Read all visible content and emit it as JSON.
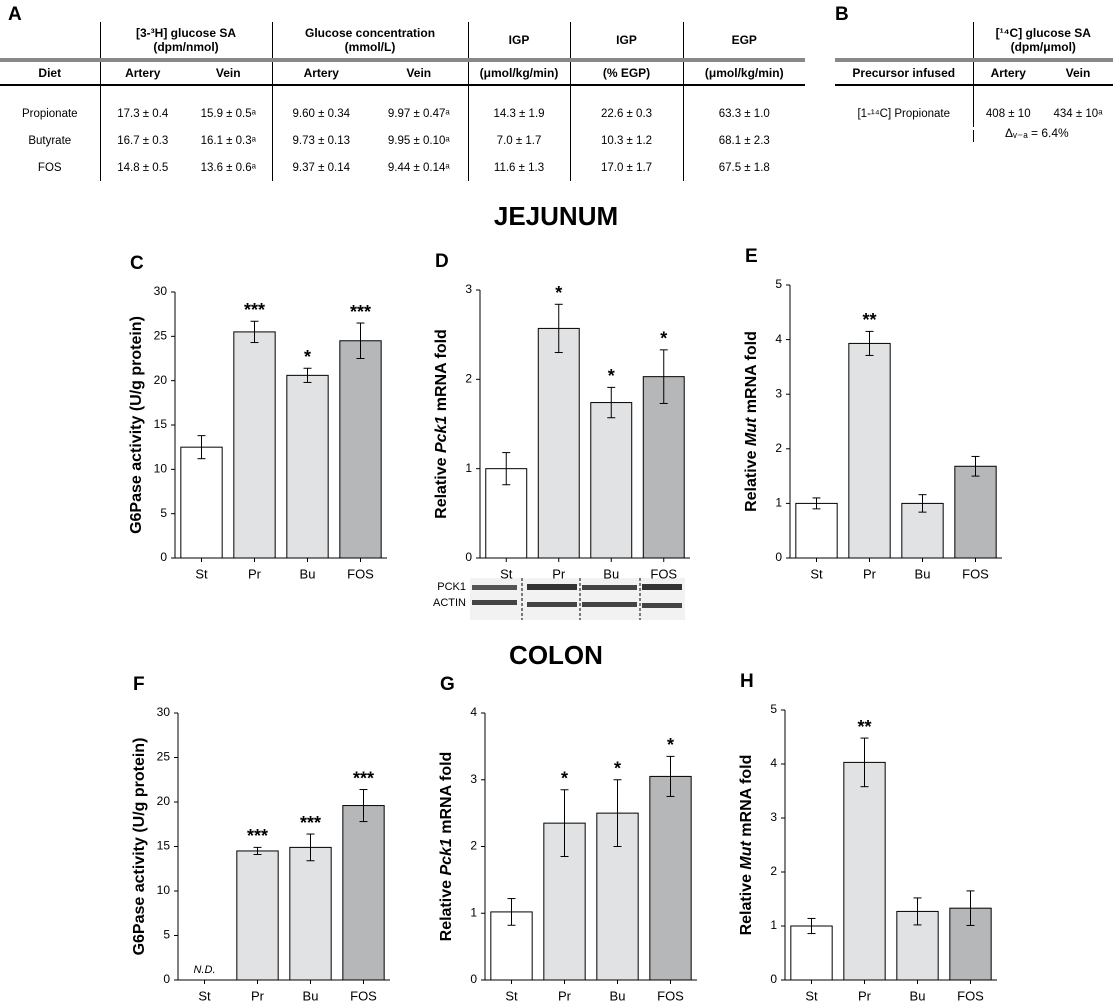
{
  "table_a": {
    "label": "A",
    "group_headers": [
      [
        "[3-³H] glucose SA",
        "(dpm/nmol)"
      ],
      [
        "Glucose concentration",
        "(mmol/L)"
      ],
      [
        "IGP"
      ],
      [
        "IGP"
      ],
      [
        "EGP"
      ]
    ],
    "columns": [
      "Diet",
      "Artery",
      "Vein",
      "Artery",
      "Vein",
      "(μmol/kg/min)",
      "(% EGP)",
      "(μmol/kg/min)"
    ],
    "rows": [
      [
        "Propionate",
        "17.3 ± 0.4",
        "15.9 ± 0.5ᵃ",
        "9.60 ± 0.34",
        "9.97 ± 0.47ᵃ",
        "14.3 ± 1.9",
        "22.6 ± 0.3",
        "63.3 ± 1.0"
      ],
      [
        "Butyrate",
        "16.7 ± 0.3",
        "16.1 ± 0.3ᵃ",
        "9.73 ± 0.13",
        "9.95 ± 0.10ᵃ",
        "7.0 ± 1.7",
        "10.3 ± 1.2",
        "68.1 ± 2.3"
      ],
      [
        "FOS",
        "14.8 ± 0.5",
        "13.6 ± 0.6ᵃ",
        "9.37 ± 0.14",
        "9.44 ± 0.14ᵃ",
        "11.6 ± 1.3",
        "17.0 ± 1.7",
        "67.5 ± 1.8"
      ]
    ]
  },
  "table_b": {
    "label": "B",
    "group_header": [
      "[¹⁴C] glucose SA",
      "(dpm/μmol)"
    ],
    "columns": [
      "Precursor infused",
      "Artery",
      "Vein"
    ],
    "rows": [
      [
        "[1-¹⁴C] Propionate",
        "408 ± 10",
        "434 ± 10ᵃ"
      ]
    ],
    "note": "Δᵥ₋ₐ = 6.4%"
  },
  "section_titles": [
    "JEJUNUM",
    "COLON"
  ],
  "blot_labels": [
    "PCK1",
    "ACTIN"
  ],
  "chart_data": [
    {
      "type": "bar",
      "label": "C",
      "ylabel": [
        "G6Pase activity (U/g protein)"
      ],
      "categories": [
        "St",
        "Pr",
        "Bu",
        "FOS"
      ],
      "values": [
        12.5,
        25.5,
        20.6,
        24.5
      ],
      "errors": [
        1.3,
        1.2,
        0.8,
        2.0
      ],
      "significance": [
        null,
        "***",
        "*",
        "***"
      ],
      "colors": [
        "#ffffff",
        "#e1e2e4",
        "#e1e2e4",
        "#b5b7b9"
      ],
      "ylim": [
        0,
        30
      ],
      "yticks": [
        0,
        5,
        10,
        15,
        20,
        25,
        30
      ]
    },
    {
      "type": "bar",
      "label": "D",
      "ylabel": [
        "Relative ",
        "Pck1",
        " mRNA fold"
      ],
      "ylabel_italic_part": 1,
      "categories": [
        "St",
        "Pr",
        "Bu",
        "FOS"
      ],
      "values": [
        1.0,
        2.57,
        1.74,
        2.03
      ],
      "errors": [
        0.18,
        0.27,
        0.17,
        0.3
      ],
      "significance": [
        null,
        "*",
        "*",
        "*"
      ],
      "colors": [
        "#ffffff",
        "#e1e2e4",
        "#e1e2e4",
        "#b5b7b9"
      ],
      "ylim": [
        0,
        3
      ],
      "yticks": [
        0,
        1,
        2,
        3
      ]
    },
    {
      "type": "bar",
      "label": "E",
      "ylabel": [
        "Relative ",
        "Mut",
        " mRNA fold"
      ],
      "ylabel_italic_part": 1,
      "categories": [
        "St",
        "Pr",
        "Bu",
        "FOS"
      ],
      "values": [
        1.0,
        3.93,
        1.0,
        1.68
      ],
      "errors": [
        0.1,
        0.22,
        0.16,
        0.18
      ],
      "significance": [
        null,
        "**",
        null,
        null
      ],
      "colors": [
        "#ffffff",
        "#e1e2e4",
        "#e1e2e4",
        "#b5b7b9"
      ],
      "ylim": [
        0,
        5
      ],
      "yticks": [
        0,
        1,
        2,
        3,
        4,
        5
      ]
    },
    {
      "type": "bar",
      "label": "F",
      "ylabel": [
        "G6Pase activity (U/g protein)"
      ],
      "categories": [
        "St",
        "Pr",
        "Bu",
        "FOS"
      ],
      "values": [
        null,
        14.5,
        14.9,
        19.6
      ],
      "value_labels": [
        "N.D.",
        null,
        null,
        null
      ],
      "errors": [
        null,
        0.4,
        1.5,
        1.8
      ],
      "significance": [
        null,
        "***",
        "***",
        "***"
      ],
      "colors": [
        "#ffffff",
        "#e1e2e4",
        "#e1e2e4",
        "#b5b7b9"
      ],
      "ylim": [
        0,
        30
      ],
      "yticks": [
        0,
        5,
        10,
        15,
        20,
        25,
        30
      ]
    },
    {
      "type": "bar",
      "label": "G",
      "ylabel": [
        "Relative ",
        "Pck1",
        " mRNA fold"
      ],
      "ylabel_italic_part": 1,
      "categories": [
        "St",
        "Pr",
        "Bu",
        "FOS"
      ],
      "values": [
        1.02,
        2.35,
        2.5,
        3.05
      ],
      "errors": [
        0.2,
        0.5,
        0.5,
        0.3
      ],
      "significance": [
        null,
        "*",
        "*",
        "*"
      ],
      "colors": [
        "#ffffff",
        "#e1e2e4",
        "#e1e2e4",
        "#b5b7b9"
      ],
      "ylim": [
        0,
        4
      ],
      "yticks": [
        0,
        1,
        2,
        3,
        4
      ]
    },
    {
      "type": "bar",
      "label": "H",
      "ylabel": [
        "Relative ",
        "Mut",
        " mRNA fold"
      ],
      "ylabel_italic_part": 1,
      "categories": [
        "St",
        "Pr",
        "Bu",
        "FOS"
      ],
      "values": [
        1.0,
        4.03,
        1.27,
        1.33
      ],
      "errors": [
        0.14,
        0.45,
        0.25,
        0.32
      ],
      "significance": [
        null,
        "**",
        null,
        null
      ],
      "colors": [
        "#ffffff",
        "#e1e2e4",
        "#e1e2e4",
        "#b5b7b9"
      ],
      "ylim": [
        0,
        5
      ],
      "yticks": [
        0,
        1,
        2,
        3,
        4,
        5
      ]
    }
  ]
}
